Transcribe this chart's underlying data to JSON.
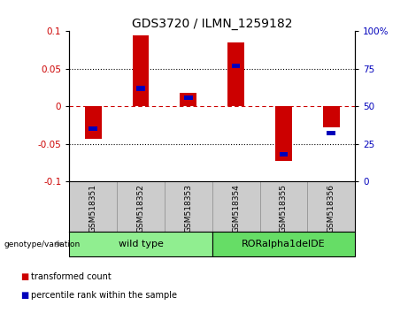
{
  "title": "GDS3720 / ILMN_1259182",
  "samples": [
    "GSM518351",
    "GSM518352",
    "GSM518353",
    "GSM518354",
    "GSM518355",
    "GSM518356"
  ],
  "red_values": [
    -0.043,
    0.095,
    0.018,
    0.085,
    -0.073,
    -0.028
  ],
  "blue_pct": [
    35,
    62,
    56,
    77,
    18,
    32
  ],
  "ylim_left": [
    -0.1,
    0.1
  ],
  "ylim_right": [
    0,
    100
  ],
  "yticks_left": [
    -0.1,
    -0.05,
    0,
    0.05,
    0.1
  ],
  "yticks_right": [
    0,
    25,
    50,
    75,
    100
  ],
  "group1_label": "wild type",
  "group2_label": "RORalpha1delDE",
  "group1_color": "#90EE90",
  "group2_color": "#66DD66",
  "label_bg_color": "#CCCCCC",
  "genotype_label": "genotype/variation",
  "legend1_label": "transformed count",
  "legend2_label": "percentile rank within the sample",
  "red_color": "#CC0000",
  "blue_color": "#0000BB",
  "red_bar_width": 0.35,
  "blue_bar_width": 0.18,
  "left_tick_color": "#CC0000",
  "right_tick_color": "#0000BB"
}
